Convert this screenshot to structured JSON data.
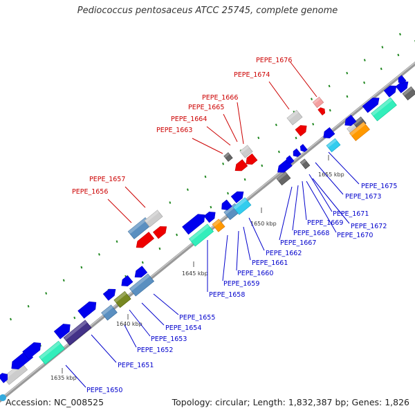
{
  "title": "Pediococcus pentosaceus ATCC 25745, complete genome",
  "footer": {
    "accession": "Accession: NC_008525",
    "summary": "Topology: circular; Length: 1,832,387 bp; Genes: 1,826"
  },
  "ticks": [
    "1635 kbp",
    "1640 kbp",
    "1645 kbp",
    "1650 kbp",
    "1655 kbp"
  ],
  "upper_labels": [
    "PEPE_1676",
    "PEPE_1674",
    "PEPE_1666",
    "PEPE_1665",
    "PEPE_1664",
    "PEPE_1663",
    "PEPE_1657",
    "PEPE_1656"
  ],
  "lower_labels": [
    "PEPE_1675",
    "PEPE_1673",
    "PEPE_1671",
    "PEPE_1672",
    "PEPE_1669",
    "PEPE_1670",
    "PEPE_1668",
    "PEPE_1667",
    "PEPE_1662",
    "PEPE_1661",
    "PEPE_1660",
    "PEPE_1659",
    "PEPE_1658",
    "PEPE_1655",
    "PEPE_1654",
    "PEPE_1653",
    "PEPE_1652",
    "PEPE_1651",
    "PEPE_1650"
  ],
  "colors": {
    "upper_label": "#cc0000",
    "lower_label": "#0000cc",
    "backbone": "#999999",
    "cds_blue": "#0000ee",
    "cds_red": "#ee0000",
    "gray": "#cccccc",
    "dark_gray": "#666666",
    "steel_blue": "#5a8fc0",
    "mint": "#33eebb",
    "orange": "#ff9900",
    "cyan": "#33ccee",
    "olive": "#778822",
    "indigo": "#443388",
    "pink": "#f4a0a0",
    "dot_green": "#228822"
  }
}
